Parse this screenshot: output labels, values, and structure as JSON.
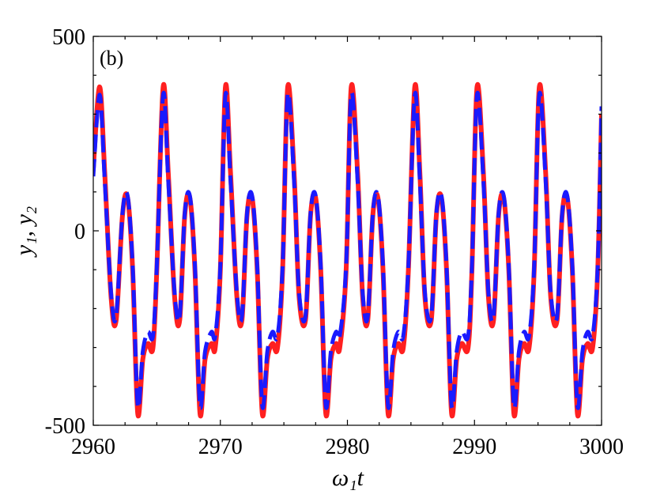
{
  "chart_data": {
    "type": "line",
    "panel_label": "(b)",
    "xlabel": "ω₁t",
    "ylabel": "y₁, y₂",
    "xlim": [
      2960,
      3000
    ],
    "ylim": [
      -500,
      500
    ],
    "x_ticks": [
      2960,
      2970,
      2980,
      2990,
      3000
    ],
    "x_tick_labels": [
      "2960",
      "2970",
      "2980",
      "2990",
      "3000"
    ],
    "y_ticks": [
      -500,
      0,
      500
    ],
    "y_tick_labels": [
      "-500",
      "0",
      "500"
    ],
    "grid": false,
    "legend": "none",
    "series_style": [
      {
        "color": "#ff2020",
        "line": "solid"
      },
      {
        "color": "#1a1aff",
        "line": "dashed"
      }
    ],
    "period": 4.95,
    "series": [
      {
        "x": [
          2960.0,
          2960.5,
          2960.9,
          2961.4,
          2961.8,
          2962.3,
          2962.7,
          2963.1,
          2963.5,
          2963.9,
          2964.3,
          2964.7,
          2965.0,
          2965.5,
          2965.9,
          2966.4,
          2966.8,
          2967.2,
          2967.6,
          2968.0,
          2968.4,
          2968.8,
          2969.3,
          2969.6,
          2970.0,
          2970.4,
          2970.8,
          2971.3,
          2971.7,
          2972.1,
          2972.5,
          2972.9,
          2973.3,
          2973.7,
          2974.1,
          2974.5,
          2974.9,
          2975.3,
          2975.8,
          2976.2,
          2976.7,
          2977.1,
          2977.5,
          2977.9,
          2978.3,
          2978.7,
          2979.1,
          2979.4,
          2979.9,
          2980.3,
          2980.8,
          2981.2,
          2981.6,
          2982.0,
          2982.4,
          2982.8,
          2983.2,
          2983.6,
          2984.0,
          2984.4,
          2984.8,
          2985.3,
          2985.7,
          2986.1,
          2986.6,
          2987.0,
          2987.4,
          2987.8,
          2988.2,
          2988.6,
          2989.0,
          2989.5,
          2989.8,
          2990.2,
          2990.7,
          2991.1,
          2991.5,
          2991.9,
          2992.3,
          2992.7,
          2993.1,
          2993.5,
          2993.9,
          2994.3,
          2994.7,
          2995.1,
          2995.6,
          2996.0,
          2996.5,
          2996.9,
          2997.3,
          2997.7,
          2998.1,
          2998.5,
          2998.9,
          2999.3,
          2999.7,
          3000.0
        ],
        "y": [
          160,
          370,
          150,
          -170,
          -230,
          40,
          85,
          -100,
          -470,
          -330,
          -290,
          -300,
          -100,
          370,
          150,
          -170,
          -230,
          40,
          85,
          -100,
          -470,
          -330,
          -290,
          -300,
          -100,
          370,
          150,
          -170,
          -230,
          40,
          85,
          -100,
          -470,
          -330,
          -290,
          -300,
          -100,
          370,
          150,
          -170,
          -230,
          40,
          85,
          -100,
          -470,
          -330,
          -290,
          -300,
          -100,
          370,
          150,
          -170,
          -230,
          40,
          85,
          -100,
          -470,
          -330,
          -290,
          -300,
          -100,
          370,
          150,
          -170,
          -230,
          40,
          85,
          -100,
          -470,
          -330,
          -290,
          -300,
          -100,
          370,
          150,
          -170,
          -230,
          40,
          85,
          -100,
          -470,
          -330,
          -290,
          -300,
          -100,
          370,
          150,
          -170,
          -230,
          40,
          85,
          -100,
          -470,
          -330,
          -290,
          -300,
          -100,
          300
        ]
      },
      {
        "x": [
          2960.0,
          2960.5,
          2960.9,
          2961.4,
          2961.8,
          2962.3,
          2962.7,
          2963.1,
          2963.5,
          2963.9,
          2964.3,
          2964.7,
          2965.0,
          2965.5,
          2965.9,
          2966.4,
          2966.8,
          2967.2,
          2967.6,
          2968.0,
          2968.4,
          2968.8,
          2969.3,
          2969.6,
          2970.0,
          2970.4,
          2970.8,
          2971.3,
          2971.7,
          2972.1,
          2972.5,
          2972.9,
          2973.3,
          2973.7,
          2974.1,
          2974.5,
          2974.9,
          2975.3,
          2975.8,
          2976.2,
          2976.7,
          2977.1,
          2977.5,
          2977.9,
          2978.3,
          2978.7,
          2979.1,
          2979.4,
          2979.9,
          2980.3,
          2980.8,
          2981.2,
          2981.6,
          2982.0,
          2982.4,
          2982.8,
          2983.2,
          2983.6,
          2984.0,
          2984.4,
          2984.8,
          2985.3,
          2985.7,
          2986.1,
          2986.6,
          2987.0,
          2987.4,
          2987.8,
          2988.2,
          2988.6,
          2989.0,
          2989.5,
          2989.8,
          2990.2,
          2990.7,
          2991.1,
          2991.5,
          2991.9,
          2992.3,
          2992.7,
          2993.1,
          2993.5,
          2993.9,
          2994.3,
          2994.7,
          2995.1,
          2995.6,
          2996.0,
          2996.5,
          2996.9,
          2997.3,
          2997.7,
          2998.1,
          2998.5,
          2998.9,
          2999.3,
          2999.7,
          3000.0
        ],
        "y": [
          140,
          350,
          130,
          -160,
          -220,
          45,
          90,
          -90,
          -450,
          -310,
          -260,
          -270,
          -90,
          350,
          130,
          -160,
          -220,
          45,
          90,
          -90,
          -450,
          -310,
          -260,
          -270,
          -90,
          350,
          130,
          -160,
          -220,
          45,
          90,
          -90,
          -450,
          -310,
          -260,
          -270,
          -90,
          350,
          130,
          -160,
          -220,
          45,
          90,
          -90,
          -450,
          -310,
          -260,
          -270,
          -90,
          350,
          130,
          -160,
          -220,
          45,
          90,
          -90,
          -450,
          -310,
          -260,
          -270,
          -90,
          350,
          130,
          -160,
          -220,
          45,
          90,
          -90,
          -450,
          -310,
          -260,
          -270,
          -90,
          350,
          130,
          -160,
          -220,
          45,
          90,
          -90,
          -450,
          -310,
          -260,
          -270,
          -90,
          350,
          130,
          -160,
          -220,
          45,
          90,
          -90,
          -450,
          -310,
          -260,
          -270,
          -90,
          320
        ]
      }
    ]
  }
}
